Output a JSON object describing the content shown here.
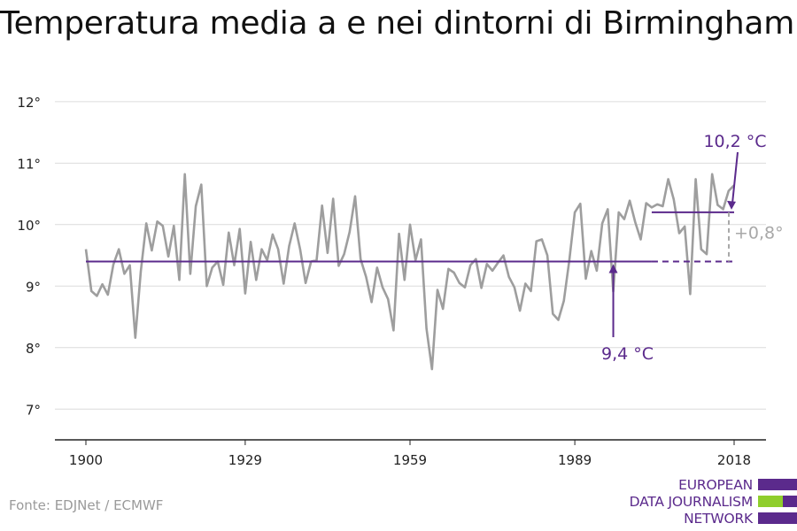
{
  "title": "Temperatura media a e nei dintorni di Birmingham",
  "source": "Fonte: EDJNet / ECMWF",
  "logo": {
    "lines": [
      "EUROPEAN",
      "DATA JOURNALISM",
      "NETWORK"
    ],
    "colors": {
      "purple": "#5b2a8c",
      "green": "#8fce2c"
    }
  },
  "chart_data": {
    "type": "line",
    "title": "Temperatura media a e nei dintorni di Birmingham",
    "xlabel": "",
    "ylabel": "",
    "xlim": [
      1900,
      2018
    ],
    "ylim": [
      6.5,
      12.3
    ],
    "x_ticks": [
      {
        "value": 1900,
        "label": "1900"
      },
      {
        "value": 1929,
        "label": "1929"
      },
      {
        "value": 1959,
        "label": "1959"
      },
      {
        "value": 1989,
        "label": "1989"
      },
      {
        "value": 2018,
        "label": "2018"
      }
    ],
    "y_ticks": [
      {
        "value": 7,
        "label": "7°"
      },
      {
        "value": 8,
        "label": "8°"
      },
      {
        "value": 9,
        "label": "9°"
      },
      {
        "value": 10,
        "label": "10°"
      },
      {
        "value": 11,
        "label": "11°"
      },
      {
        "value": 12,
        "label": "12°"
      }
    ],
    "grid": "horizontal",
    "series": [
      {
        "color": "#9e9e9e",
        "x": [
          1900,
          1901,
          1902,
          1903,
          1904,
          1905,
          1906,
          1907,
          1908,
          1909,
          1910,
          1911,
          1912,
          1913,
          1914,
          1915,
          1916,
          1917,
          1918,
          1919,
          1920,
          1921,
          1922,
          1923,
          1924,
          1925,
          1926,
          1927,
          1928,
          1929,
          1930,
          1931,
          1932,
          1933,
          1934,
          1935,
          1936,
          1937,
          1938,
          1939,
          1940,
          1941,
          1942,
          1943,
          1944,
          1945,
          1946,
          1947,
          1948,
          1949,
          1950,
          1951,
          1952,
          1953,
          1954,
          1955,
          1956,
          1957,
          1958,
          1959,
          1960,
          1961,
          1962,
          1963,
          1964,
          1965,
          1966,
          1967,
          1968,
          1969,
          1970,
          1971,
          1972,
          1973,
          1974,
          1975,
          1976,
          1977,
          1978,
          1979,
          1980,
          1981,
          1982,
          1983,
          1984,
          1985,
          1986,
          1987,
          1988,
          1989,
          1990,
          1991,
          1992,
          1993,
          1994,
          1995,
          1996,
          1997,
          1998,
          1999,
          2000,
          2001,
          2002,
          2003,
          2004,
          2005,
          2006,
          2007,
          2008,
          2009,
          2010,
          2011,
          2012,
          2013,
          2014,
          2015,
          2016,
          2017,
          2018
        ],
        "values": [
          9.6,
          8.92,
          8.84,
          9.03,
          8.86,
          9.35,
          9.6,
          9.2,
          9.34,
          8.16,
          9.24,
          10.02,
          9.58,
          10.05,
          9.98,
          9.48,
          9.98,
          9.1,
          10.82,
          9.2,
          10.3,
          10.65,
          9.0,
          9.3,
          9.4,
          9.02,
          9.87,
          9.34,
          9.93,
          8.88,
          9.72,
          9.1,
          9.6,
          9.42,
          9.84,
          9.6,
          9.04,
          9.65,
          10.02,
          9.6,
          9.05,
          9.4,
          9.42,
          10.31,
          9.54,
          10.42,
          9.33,
          9.52,
          9.88,
          10.46,
          9.44,
          9.15,
          8.74,
          9.3,
          8.98,
          8.79,
          8.28,
          9.85,
          9.1,
          10.0,
          9.42,
          9.76,
          8.31,
          7.65,
          8.94,
          8.63,
          9.28,
          9.22,
          9.05,
          8.98,
          9.34,
          9.44,
          8.97,
          9.36,
          9.25,
          9.38,
          9.5,
          9.15,
          8.98,
          8.6,
          9.04,
          8.92,
          9.73,
          9.76,
          9.5,
          8.55,
          8.45,
          8.76,
          9.42,
          10.2,
          10.34,
          9.12,
          9.57,
          9.25,
          10.02,
          10.25,
          8.91,
          10.2,
          10.09,
          10.39,
          10.04,
          9.76,
          10.35,
          10.28,
          10.33,
          10.3,
          10.74,
          10.41,
          9.86,
          9.97,
          8.87,
          10.74,
          9.6,
          9.52,
          10.82,
          10.32,
          10.25,
          10.55,
          10.64
        ]
      }
    ],
    "baseline": {
      "value": 9.4,
      "from": 1900,
      "to": 2018,
      "dashed_from": 2003,
      "color": "#5b2a8c",
      "label": "9,4 °C"
    },
    "recent": {
      "value": 10.2,
      "from": 2003,
      "to": 2018,
      "color": "#5b2a8c",
      "label": "10,2 °C"
    },
    "difference": {
      "label": "+0,8°",
      "color": "#a8a8a8"
    }
  }
}
